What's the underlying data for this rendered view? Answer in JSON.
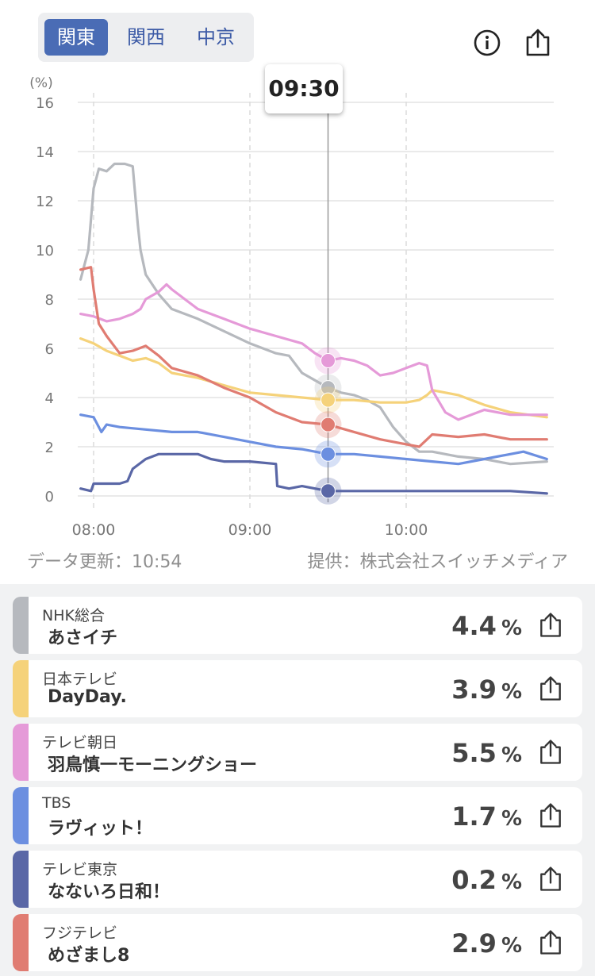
{
  "region_tabs": [
    {
      "label": "関東",
      "active": true
    },
    {
      "label": "関西",
      "active": false
    },
    {
      "label": "中京",
      "active": false
    }
  ],
  "icons": {
    "info": "info-icon",
    "share": "share-icon"
  },
  "tooltip_time": "09:30",
  "footer": {
    "updated": "データ更新：10:54",
    "provider": "提供：株式会社スイッチメディア"
  },
  "chart_data": {
    "type": "line",
    "ylabel": "(%)",
    "ylim": [
      0,
      16
    ],
    "yticks": [
      "0",
      "2",
      "4",
      "6",
      "8",
      "10",
      "12",
      "14",
      "16"
    ],
    "xticks": [
      "08:00",
      "09:00",
      "10:00"
    ],
    "selected_time": "09:30",
    "series": [
      {
        "name": "NHK総合",
        "color": "#b6b9be",
        "x": [
          "07:55",
          "07:58",
          "08:00",
          "08:02",
          "08:05",
          "08:08",
          "08:12",
          "08:15",
          "08:17",
          "08:18",
          "08:20",
          "08:25",
          "08:30",
          "08:40",
          "08:50",
          "09:00",
          "09:10",
          "09:15",
          "09:20",
          "09:25",
          "09:30",
          "09:35",
          "09:40",
          "09:45",
          "09:50",
          "09:55",
          "10:00",
          "10:05",
          "10:10",
          "10:20",
          "10:30",
          "10:40",
          "10:54"
        ],
        "y": [
          8.8,
          10.0,
          12.5,
          13.3,
          13.2,
          13.5,
          13.5,
          13.4,
          11.0,
          10.0,
          9.0,
          8.2,
          7.6,
          7.2,
          6.7,
          6.2,
          5.8,
          5.7,
          5.0,
          4.7,
          4.4,
          4.2,
          4.1,
          3.9,
          3.6,
          2.8,
          2.2,
          1.8,
          1.8,
          1.6,
          1.5,
          1.3,
          1.4
        ]
      },
      {
        "name": "日本テレビ",
        "color": "#f5d27a",
        "x": [
          "07:55",
          "08:00",
          "08:05",
          "08:10",
          "08:15",
          "08:20",
          "08:25",
          "08:30",
          "08:40",
          "08:50",
          "09:00",
          "09:10",
          "09:20",
          "09:30",
          "09:40",
          "09:50",
          "10:00",
          "10:05",
          "10:08",
          "10:10",
          "10:20",
          "10:30",
          "10:40",
          "10:54"
        ],
        "y": [
          6.4,
          6.2,
          5.9,
          5.7,
          5.5,
          5.6,
          5.4,
          5.0,
          4.8,
          4.5,
          4.2,
          4.1,
          4.0,
          3.9,
          3.9,
          3.8,
          3.8,
          3.9,
          4.1,
          4.3,
          4.1,
          3.7,
          3.4,
          3.2
        ]
      },
      {
        "name": "テレビ朝日",
        "color": "#e59ad8",
        "x": [
          "07:55",
          "08:00",
          "08:05",
          "08:10",
          "08:15",
          "08:18",
          "08:20",
          "08:25",
          "08:28",
          "08:30",
          "08:35",
          "08:40",
          "08:50",
          "09:00",
          "09:10",
          "09:20",
          "09:25",
          "09:30",
          "09:35",
          "09:40",
          "09:45",
          "09:50",
          "09:55",
          "10:00",
          "10:05",
          "10:08",
          "10:10",
          "10:15",
          "10:20",
          "10:30",
          "10:40",
          "10:54"
        ],
        "y": [
          7.4,
          7.3,
          7.1,
          7.2,
          7.4,
          7.6,
          8.0,
          8.3,
          8.6,
          8.4,
          8.0,
          7.6,
          7.2,
          6.8,
          6.5,
          6.2,
          5.8,
          5.5,
          5.6,
          5.5,
          5.3,
          4.9,
          5.0,
          5.2,
          5.4,
          5.3,
          4.3,
          3.4,
          3.1,
          3.5,
          3.3,
          3.3
        ]
      },
      {
        "name": "TBS",
        "color": "#6c8fe0",
        "x": [
          "07:55",
          "08:00",
          "08:03",
          "08:05",
          "08:10",
          "08:20",
          "08:30",
          "08:40",
          "08:50",
          "09:00",
          "09:10",
          "09:20",
          "09:30",
          "09:40",
          "09:50",
          "10:00",
          "10:10",
          "10:20",
          "10:30",
          "10:40",
          "10:45",
          "10:54"
        ],
        "y": [
          3.3,
          3.2,
          2.6,
          2.9,
          2.8,
          2.7,
          2.6,
          2.6,
          2.4,
          2.2,
          2.0,
          1.9,
          1.7,
          1.7,
          1.6,
          1.5,
          1.4,
          1.3,
          1.5,
          1.7,
          1.8,
          1.5
        ]
      },
      {
        "name": "テレビ東京",
        "color": "#5a67a6",
        "x": [
          "07:55",
          "07:59",
          "08:00",
          "08:05",
          "08:10",
          "08:13",
          "08:15",
          "08:20",
          "08:25",
          "08:30",
          "08:40",
          "08:45",
          "08:50",
          "09:00",
          "09:10",
          "09:10.5",
          "09:15",
          "09:20",
          "09:25",
          "09:30",
          "09:40",
          "09:50",
          "10:00",
          "10:20",
          "10:40",
          "10:54"
        ],
        "y": [
          0.3,
          0.2,
          0.5,
          0.5,
          0.5,
          0.6,
          1.1,
          1.5,
          1.7,
          1.7,
          1.7,
          1.5,
          1.4,
          1.4,
          1.3,
          0.4,
          0.3,
          0.4,
          0.3,
          0.2,
          0.2,
          0.2,
          0.2,
          0.2,
          0.2,
          0.1
        ]
      },
      {
        "name": "フジテレビ",
        "color": "#e07c72",
        "x": [
          "07:55",
          "07:59",
          "08:00",
          "08:02",
          "08:05",
          "08:10",
          "08:15",
          "08:20",
          "08:25",
          "08:30",
          "08:40",
          "08:50",
          "09:00",
          "09:10",
          "09:20",
          "09:30",
          "09:40",
          "09:50",
          "10:00",
          "10:05",
          "10:08",
          "10:10",
          "10:20",
          "10:30",
          "10:40",
          "10:54"
        ],
        "y": [
          9.2,
          9.3,
          8.4,
          7.0,
          6.5,
          5.8,
          5.9,
          6.1,
          5.7,
          5.2,
          4.9,
          4.4,
          4.0,
          3.4,
          3.0,
          2.9,
          2.6,
          2.3,
          2.1,
          2.0,
          2.3,
          2.5,
          2.4,
          2.5,
          2.3,
          2.3
        ]
      }
    ],
    "values_at_selected_time": [
      4.4,
      3.9,
      5.5,
      1.7,
      0.2,
      2.9
    ]
  },
  "ratings": [
    {
      "channel": "NHK総合",
      "program": "あさイチ",
      "value": "4.4",
      "unit": "%",
      "color": "#b6b9be"
    },
    {
      "channel": "日本テレビ",
      "program": "DayDay.",
      "value": "3.9",
      "unit": "%",
      "color": "#f5d27a"
    },
    {
      "channel": "テレビ朝日",
      "program": "羽鳥慎一モーニングショー",
      "value": "5.5",
      "unit": "%",
      "color": "#e59ad8"
    },
    {
      "channel": "TBS",
      "program": "ラヴィット！",
      "value": "1.7",
      "unit": "%",
      "color": "#6c8fe0"
    },
    {
      "channel": "テレビ東京",
      "program": "なないろ日和！",
      "value": "0.2",
      "unit": "%",
      "color": "#5a67a6"
    },
    {
      "channel": "フジテレビ",
      "program": "めざまし8",
      "value": "2.9",
      "unit": "%",
      "color": "#e07c72"
    }
  ]
}
